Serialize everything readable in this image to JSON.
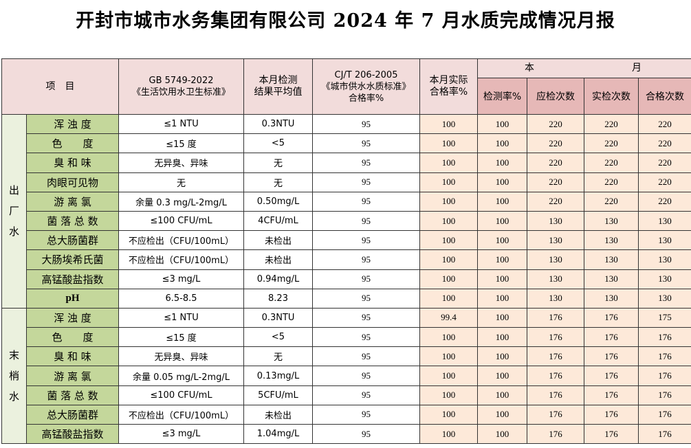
{
  "title": "开封市城市水务集团有限公司 2024 年 7 月水质完成情况月报",
  "header": {
    "item": "项　目",
    "gb_line1": "GB 5749-2022",
    "gb_line2": "《生活饮用水卫生标准》",
    "avg_line1": "本月检测",
    "avg_line2": "结果平均值",
    "cjt_line1": "CJ/T 206-2005",
    "cjt_line2": "《城市供水水质标准》",
    "cjt_line3": "合格率%",
    "actual_line1": "本月实际",
    "actual_line2": "合格率%",
    "month_left": "本",
    "month_right": "月",
    "rate": "检测率%",
    "should": "应检次数",
    "actual": "实检次数",
    "qualified": "合格次数"
  },
  "groups": [
    {
      "label": "出厂水",
      "rows": [
        {
          "name": "浑 浊 度",
          "std": "≤1 NTU",
          "avg": "0.3NTU",
          "cjt": "95",
          "actual_rate": "100",
          "detect": "100",
          "should": "220",
          "done": "220",
          "pass": "220"
        },
        {
          "name": "色　　度",
          "std": "≤15 度",
          "avg": "<5",
          "cjt": "95",
          "actual_rate": "100",
          "detect": "100",
          "should": "220",
          "done": "220",
          "pass": "220"
        },
        {
          "name": "臭 和 味",
          "std": "无异臭、异味",
          "avg": "无",
          "cjt": "95",
          "actual_rate": "100",
          "detect": "100",
          "should": "220",
          "done": "220",
          "pass": "220"
        },
        {
          "name": "肉眼可见物",
          "std": "无",
          "avg": "无",
          "cjt": "95",
          "actual_rate": "100",
          "detect": "100",
          "should": "220",
          "done": "220",
          "pass": "220"
        },
        {
          "name": "游 离 氯",
          "std": "余量 0.3 mg/L-2mg/L",
          "avg": "0.50mg/L",
          "cjt": "95",
          "actual_rate": "100",
          "detect": "100",
          "should": "220",
          "done": "220",
          "pass": "220"
        },
        {
          "name": "菌 落 总 数",
          "std": "≤100 CFU/mL",
          "avg": "4CFU/mL",
          "cjt": "95",
          "actual_rate": "100",
          "detect": "100",
          "should": "130",
          "done": "130",
          "pass": "130"
        },
        {
          "name": "总大肠菌群",
          "std": "不应检出（CFU/100mL）",
          "avg": "未检出",
          "cjt": "95",
          "actual_rate": "100",
          "detect": "100",
          "should": "130",
          "done": "130",
          "pass": "130"
        },
        {
          "name": "大肠埃希氏菌",
          "std": "不应检出（CFU/100mL）",
          "avg": "未检出",
          "cjt": "95",
          "actual_rate": "100",
          "detect": "100",
          "should": "130",
          "done": "130",
          "pass": "130"
        },
        {
          "name": "高锰酸盐指数",
          "std": "≤3 mg/L",
          "avg": "0.94mg/L",
          "cjt": "95",
          "actual_rate": "100",
          "detect": "100",
          "should": "130",
          "done": "130",
          "pass": "130"
        },
        {
          "name": "pH",
          "std": "6.5-8.5",
          "avg": "8.23",
          "cjt": "95",
          "actual_rate": "100",
          "detect": "100",
          "should": "130",
          "done": "130",
          "pass": "130"
        }
      ]
    },
    {
      "label": "末梢水",
      "rows": [
        {
          "name": "浑 浊 度",
          "std": "≤1 NTU",
          "avg": "0.3NTU",
          "cjt": "95",
          "actual_rate": "99.4",
          "detect": "100",
          "should": "176",
          "done": "176",
          "pass": "175"
        },
        {
          "name": "色　　度",
          "std": "≤15 度",
          "avg": "<5",
          "cjt": "95",
          "actual_rate": "100",
          "detect": "100",
          "should": "176",
          "done": "176",
          "pass": "176"
        },
        {
          "name": "臭 和 味",
          "std": "无异臭、异味",
          "avg": "无",
          "cjt": "95",
          "actual_rate": "100",
          "detect": "100",
          "should": "176",
          "done": "176",
          "pass": "176"
        },
        {
          "name": "游 离 氯",
          "std": "余量 0.05 mg/L-2mg/L",
          "avg": "0.13mg/L",
          "cjt": "95",
          "actual_rate": "100",
          "detect": "100",
          "should": "176",
          "done": "176",
          "pass": "176"
        },
        {
          "name": "菌 落 总 数",
          "std": "≤100 CFU/mL",
          "avg": "5CFU/mL",
          "cjt": "95",
          "actual_rate": "100",
          "detect": "100",
          "should": "176",
          "done": "176",
          "pass": "176"
        },
        {
          "name": "总大肠菌群",
          "std": "不应检出（CFU/100mL）",
          "avg": "未检出",
          "cjt": "95",
          "actual_rate": "100",
          "detect": "100",
          "should": "176",
          "done": "176",
          "pass": "176"
        },
        {
          "name": "高锰酸盐指数",
          "std": "≤3 mg/L",
          "avg": "1.04mg/L",
          "cjt": "95",
          "actual_rate": "100",
          "detect": "100",
          "should": "176",
          "done": "176",
          "pass": "176"
        }
      ]
    }
  ]
}
